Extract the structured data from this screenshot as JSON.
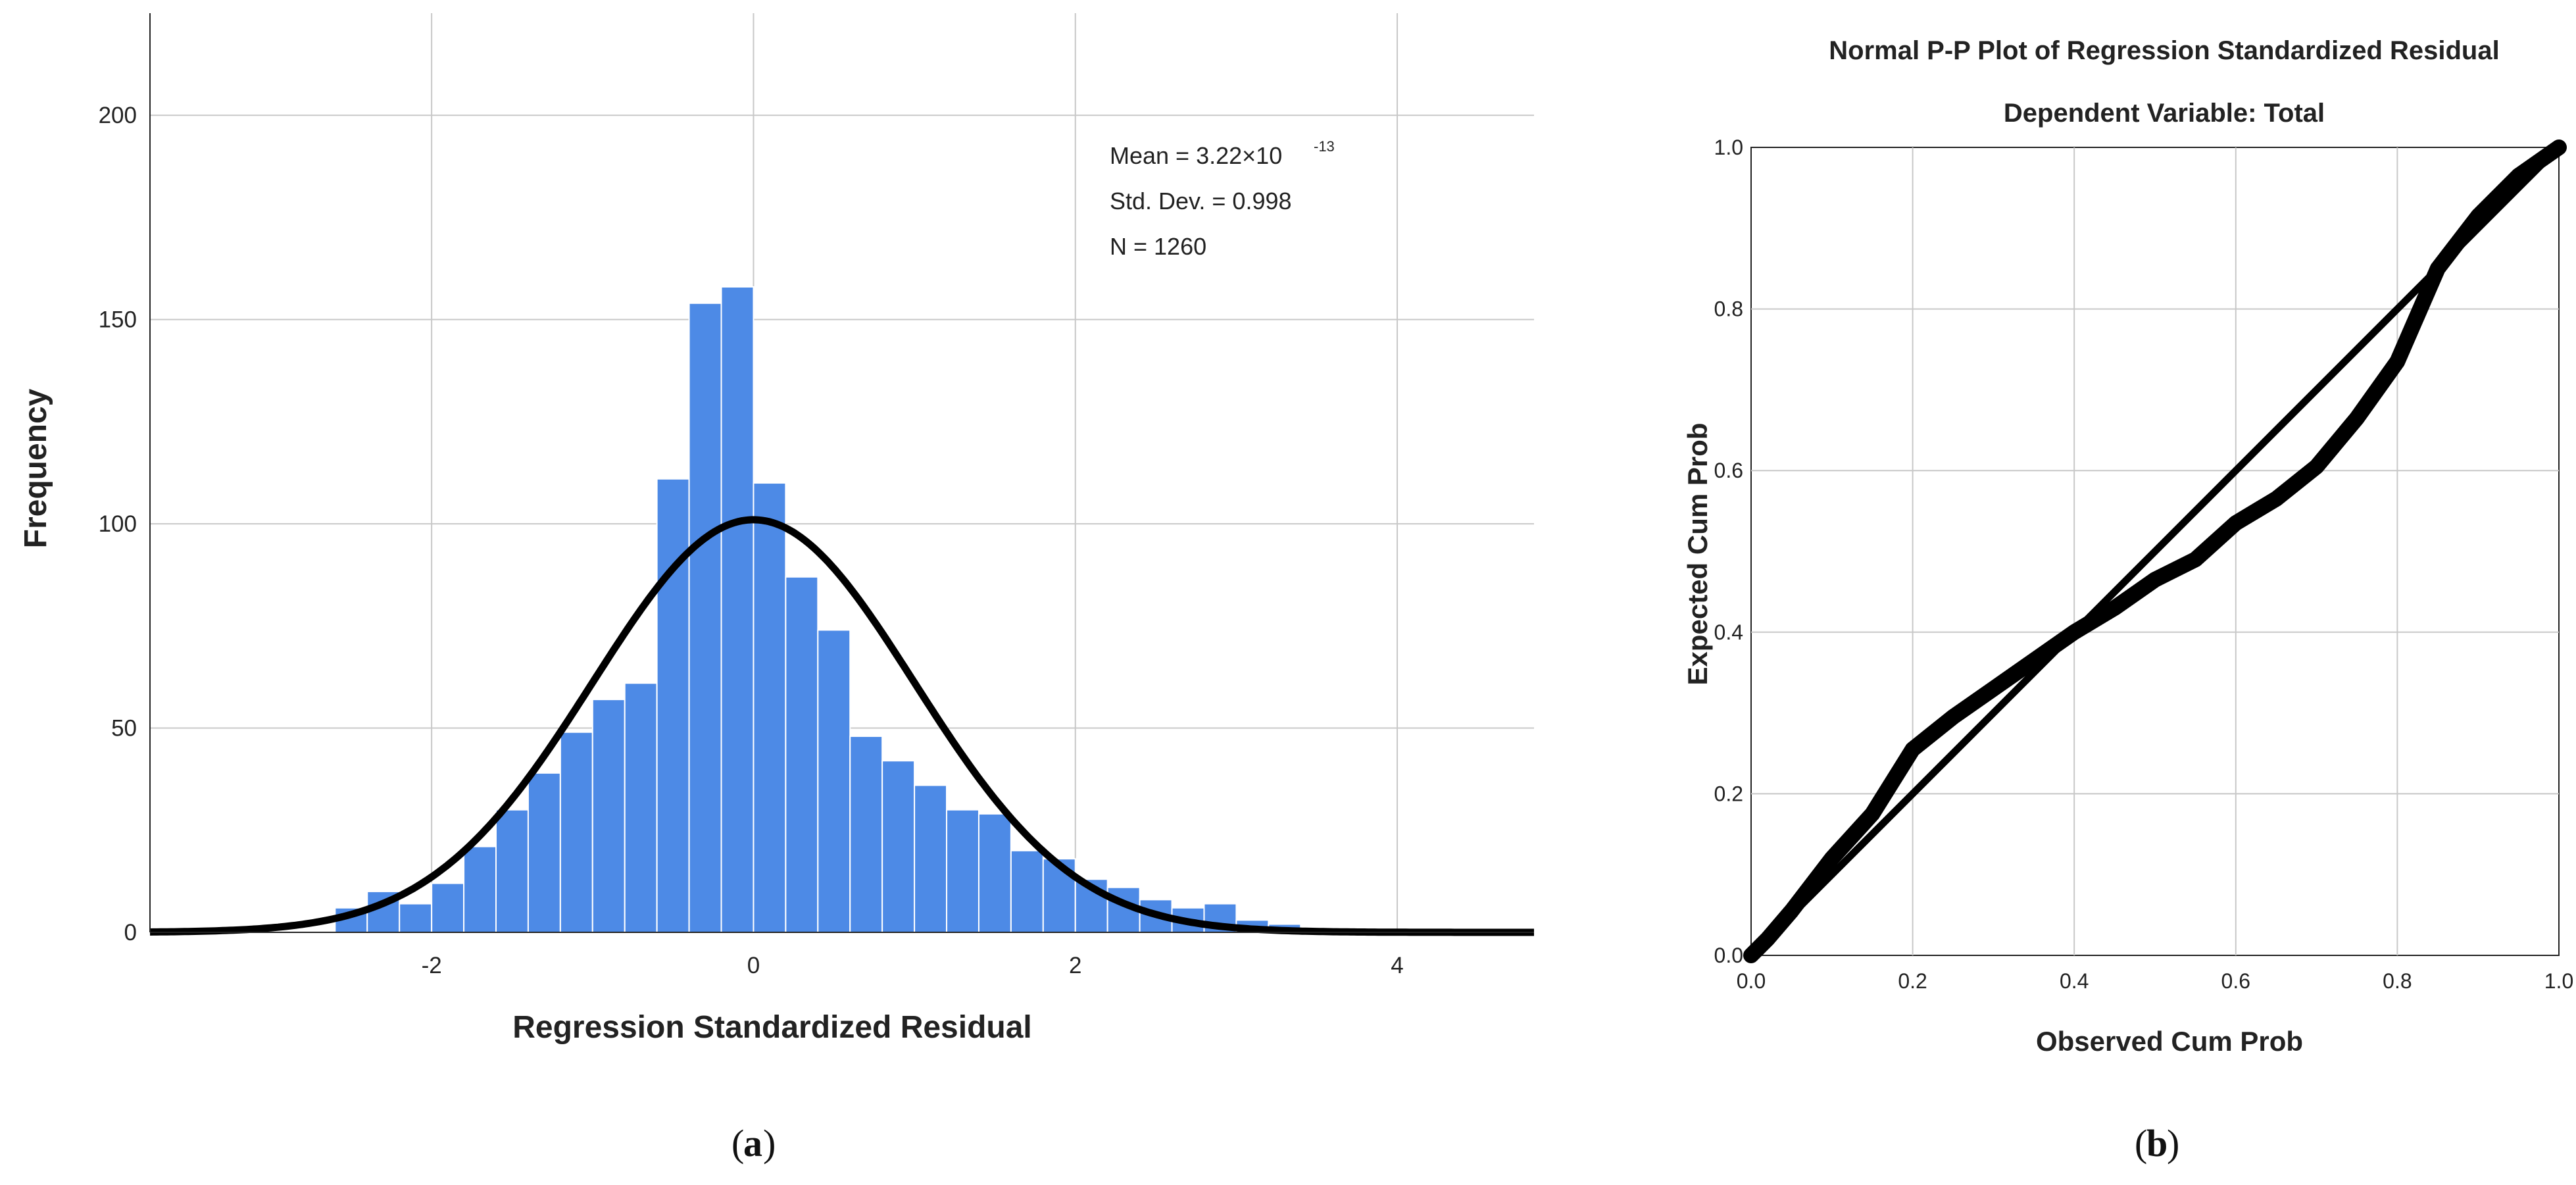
{
  "chart_data": [
    {
      "type": "bar",
      "subtype": "histogram",
      "xlabel": "Regression Standardized Residual",
      "ylabel": "Frequency",
      "xlim": [
        -3.75,
        4.85
      ],
      "ylim": [
        0,
        225
      ],
      "bin_width": 0.2,
      "x_ticks": [
        -2,
        0,
        2,
        4
      ],
      "y_ticks": [
        0,
        50,
        100,
        150,
        200
      ],
      "bins": [
        {
          "start": -2.6,
          "count": 6
        },
        {
          "start": -2.4,
          "count": 10
        },
        {
          "start": -2.2,
          "count": 7
        },
        {
          "start": -2.0,
          "count": 12
        },
        {
          "start": -1.8,
          "count": 21
        },
        {
          "start": -1.6,
          "count": 30
        },
        {
          "start": -1.4,
          "count": 39
        },
        {
          "start": -1.2,
          "count": 49
        },
        {
          "start": -1.0,
          "count": 57
        },
        {
          "start": -0.8,
          "count": 61
        },
        {
          "start": -0.6,
          "count": 111
        },
        {
          "start": -0.4,
          "count": 154
        },
        {
          "start": -0.2,
          "count": 158
        },
        {
          "start": 0.0,
          "count": 110
        },
        {
          "start": 0.2,
          "count": 87
        },
        {
          "start": 0.4,
          "count": 74
        },
        {
          "start": 0.6,
          "count": 48
        },
        {
          "start": 0.8,
          "count": 42
        },
        {
          "start": 1.0,
          "count": 36
        },
        {
          "start": 1.2,
          "count": 30
        },
        {
          "start": 1.4,
          "count": 29
        },
        {
          "start": 1.6,
          "count": 20
        },
        {
          "start": 1.8,
          "count": 18
        },
        {
          "start": 2.0,
          "count": 13
        },
        {
          "start": 2.2,
          "count": 11
        },
        {
          "start": 2.4,
          "count": 8
        },
        {
          "start": 2.6,
          "count": 6
        },
        {
          "start": 2.8,
          "count": 7
        },
        {
          "start": 3.0,
          "count": 3
        },
        {
          "start": 3.2,
          "count": 2
        },
        {
          "start": 3.4,
          "count": 1
        }
      ],
      "normal_curve": {
        "mean": 0.0,
        "std": 0.998,
        "peak": 101
      },
      "annotations": {
        "mean_label": "Mean = 3.22×10",
        "mean_exponent": "-13",
        "std_label": "Std. Dev. = 0.998",
        "n_label": "N = 1260"
      },
      "bar_color": "#4d8ae6",
      "curve_color": "#000000",
      "panel_label": "a"
    },
    {
      "type": "scatter",
      "subtype": "p-p plot",
      "title": "Normal P-P Plot of Regression Standardized Residual",
      "subtitle": "Dependent Variable: Total",
      "xlabel": "Observed Cum Prob",
      "ylabel": "Expected Cum Prob",
      "xlim": [
        0,
        1
      ],
      "ylim": [
        0,
        1
      ],
      "x_ticks": [
        "0.0",
        "0.2",
        "0.4",
        "0.6",
        "0.8",
        "1.0"
      ],
      "y_ticks": [
        "0.0",
        "0.2",
        "0.4",
        "0.6",
        "0.8",
        "1.0"
      ],
      "reference_line": [
        [
          0,
          0
        ],
        [
          1,
          1
        ]
      ],
      "curve_points": [
        [
          0.0,
          0.0
        ],
        [
          0.02,
          0.02
        ],
        [
          0.05,
          0.055
        ],
        [
          0.1,
          0.12
        ],
        [
          0.15,
          0.175
        ],
        [
          0.2,
          0.255
        ],
        [
          0.25,
          0.295
        ],
        [
          0.3,
          0.33
        ],
        [
          0.35,
          0.365
        ],
        [
          0.4,
          0.4
        ],
        [
          0.45,
          0.43
        ],
        [
          0.5,
          0.465
        ],
        [
          0.55,
          0.49
        ],
        [
          0.6,
          0.535
        ],
        [
          0.65,
          0.565
        ],
        [
          0.7,
          0.605
        ],
        [
          0.75,
          0.665
        ],
        [
          0.8,
          0.735
        ],
        [
          0.85,
          0.85
        ],
        [
          0.9,
          0.915
        ],
        [
          0.95,
          0.965
        ],
        [
          1.0,
          1.0
        ]
      ],
      "grid": true,
      "panel_label": "b"
    }
  ]
}
